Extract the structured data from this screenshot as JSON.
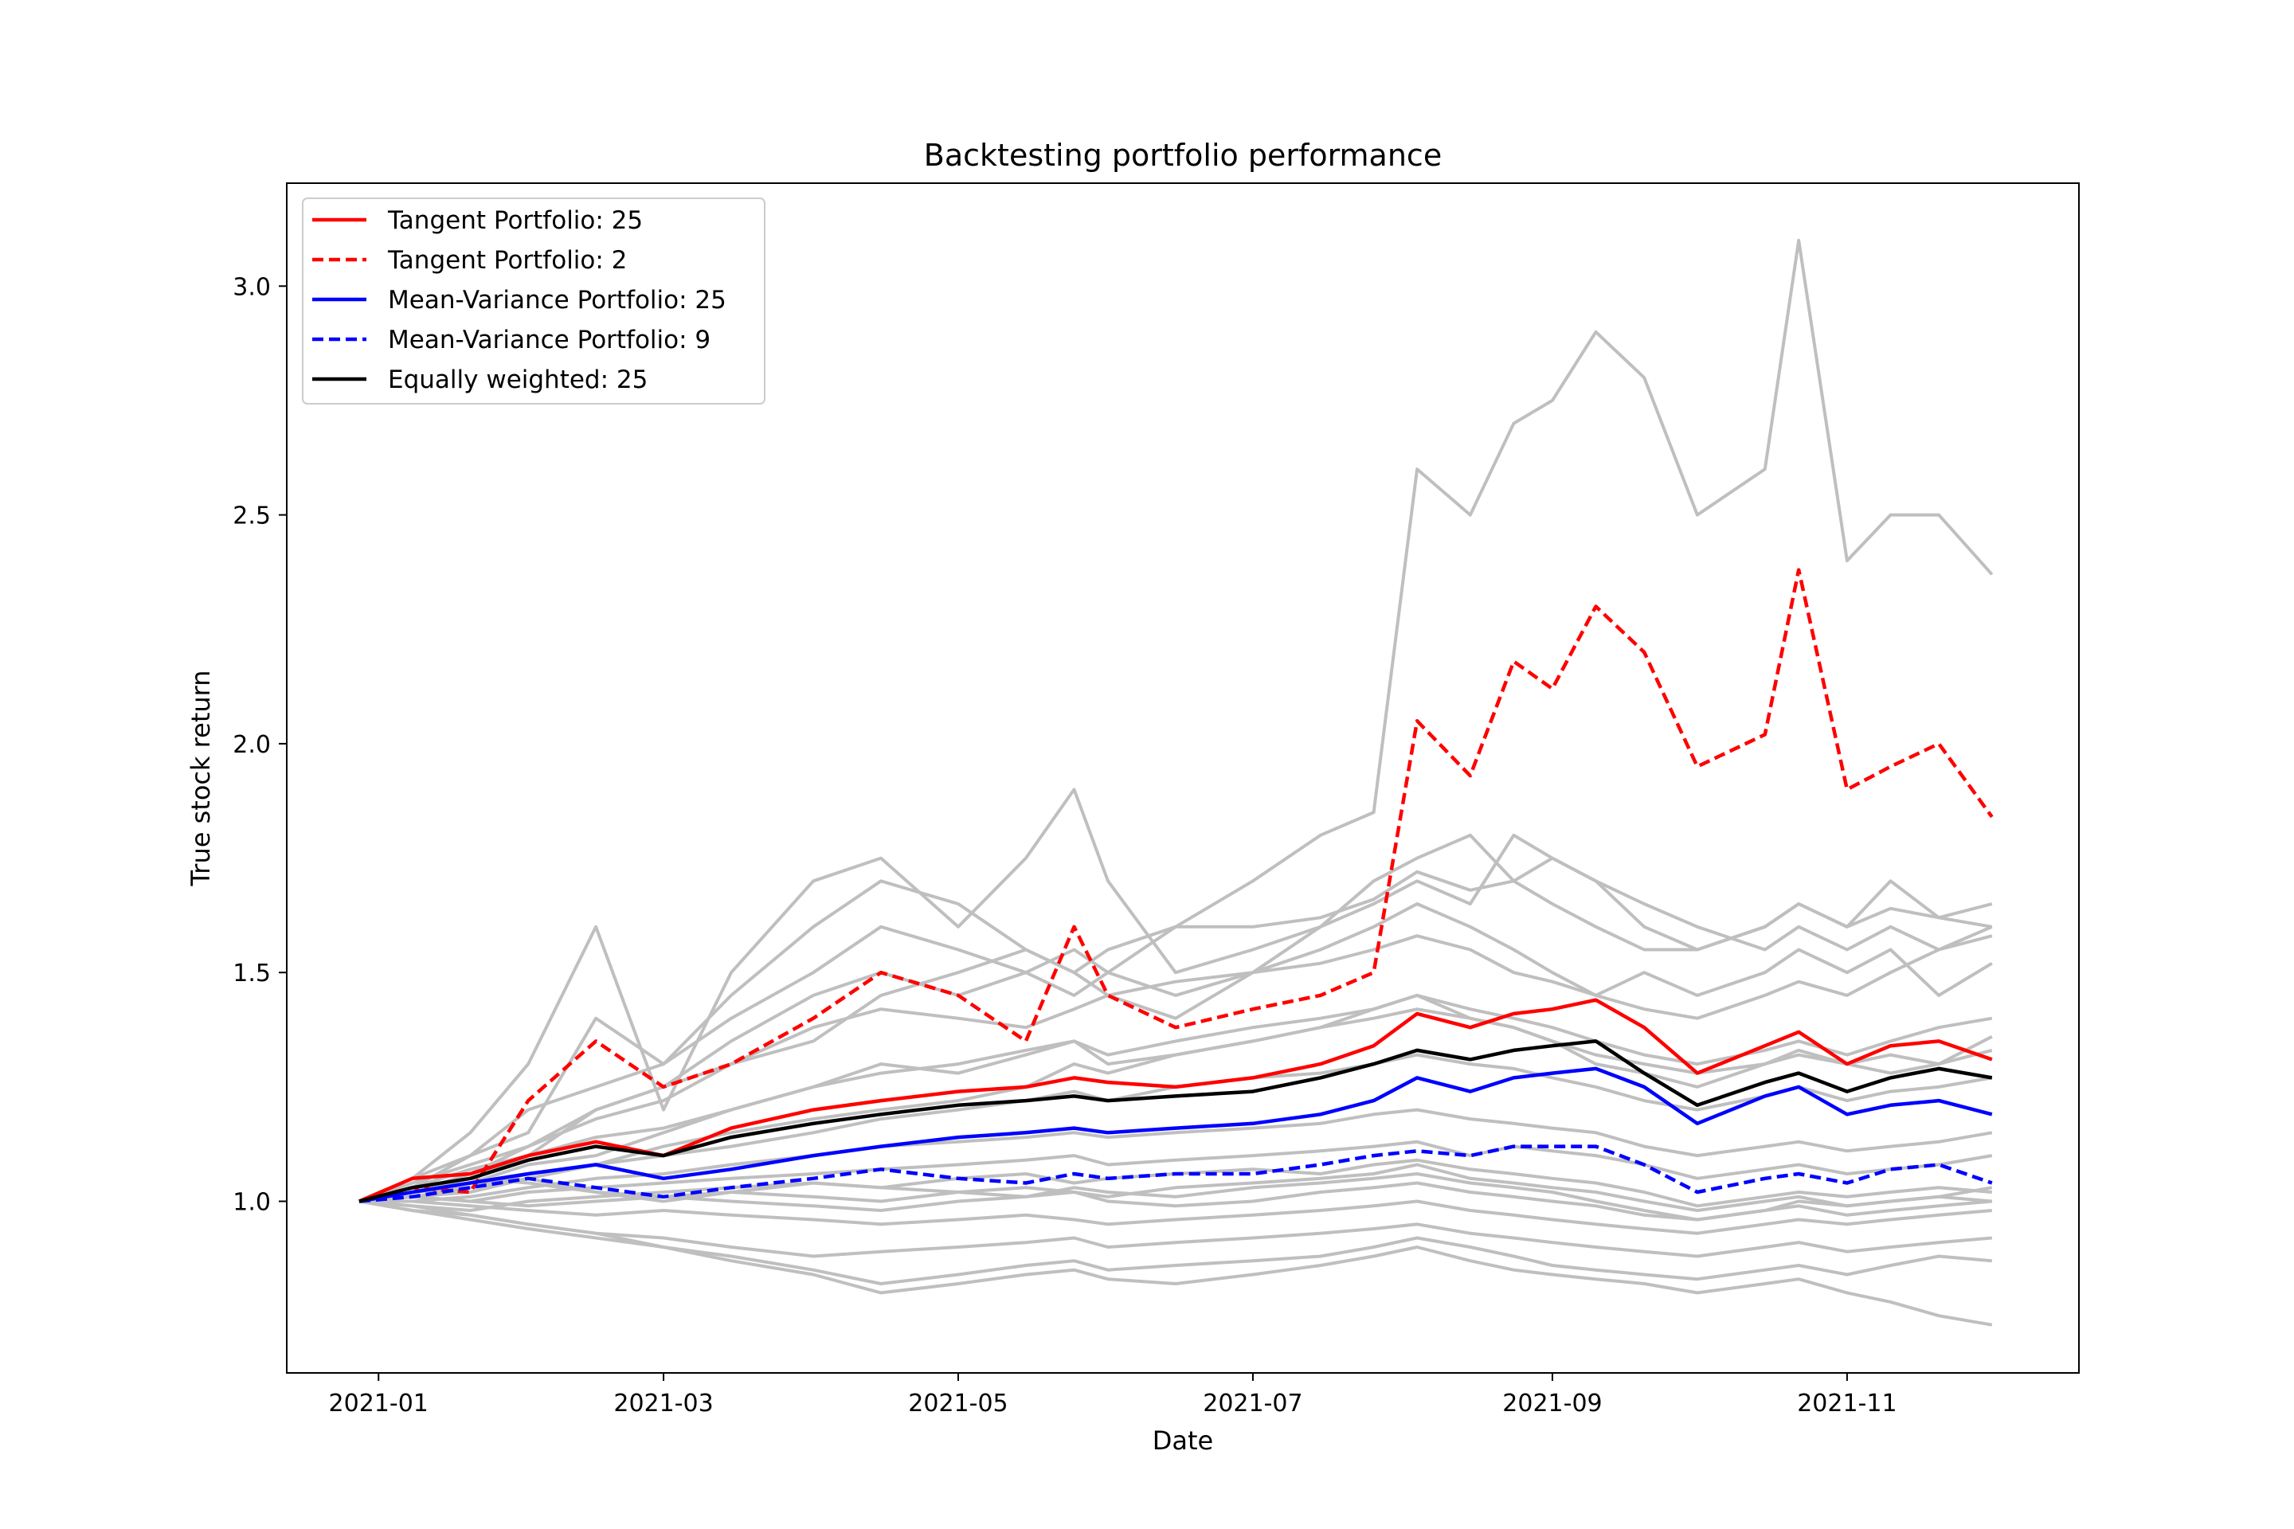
{
  "chart_data": {
    "type": "line",
    "title": "Backtesting portfolio performance",
    "xlabel": "Date",
    "ylabel": "True stock return",
    "xlim": [
      "2020-12-13",
      "2021-12-19"
    ],
    "ylim": [
      0.625,
      3.225
    ],
    "x_ticks": [
      {
        "date": "2021-01-01",
        "label": "2021-01"
      },
      {
        "date": "2021-03-01",
        "label": "2021-03"
      },
      {
        "date": "2021-05-01",
        "label": "2021-05"
      },
      {
        "date": "2021-07-01",
        "label": "2021-07"
      },
      {
        "date": "2021-09-01",
        "label": "2021-09"
      },
      {
        "date": "2021-11-01",
        "label": "2021-11"
      }
    ],
    "y_ticks": [
      {
        "value": 1.0,
        "label": "1.0"
      },
      {
        "value": 1.5,
        "label": "1.5"
      },
      {
        "value": 2.0,
        "label": "2.0"
      },
      {
        "value": 2.5,
        "label": "2.5"
      },
      {
        "value": 3.0,
        "label": "3.0"
      }
    ],
    "grid": false,
    "legend_position": "top-left",
    "x": [
      "2020-12-28",
      "2021-01-08",
      "2021-01-20",
      "2021-02-01",
      "2021-02-15",
      "2021-03-01",
      "2021-03-15",
      "2021-04-01",
      "2021-04-15",
      "2021-05-01",
      "2021-05-15",
      "2021-05-25",
      "2021-06-01",
      "2021-06-15",
      "2021-07-01",
      "2021-07-15",
      "2021-07-26",
      "2021-08-04",
      "2021-08-15",
      "2021-08-24",
      "2021-09-01",
      "2021-09-10",
      "2021-09-20",
      "2021-10-01",
      "2021-10-15",
      "2021-10-22",
      "2021-11-01",
      "2021-11-10",
      "2021-11-20",
      "2021-12-01"
    ],
    "series": [
      {
        "name": "Tangent Portfolio: 25",
        "color": "#ff0000",
        "dash": "solid",
        "values": [
          1.0,
          1.05,
          1.06,
          1.1,
          1.13,
          1.1,
          1.16,
          1.2,
          1.22,
          1.24,
          1.25,
          1.27,
          1.26,
          1.25,
          1.27,
          1.3,
          1.34,
          1.41,
          1.38,
          1.41,
          1.42,
          1.44,
          1.38,
          1.28,
          1.34,
          1.37,
          1.3,
          1.34,
          1.35,
          1.31
        ]
      },
      {
        "name": "Tangent Portfolio: 2",
        "color": "#ff0000",
        "dash": "dashed",
        "values": [
          1.0,
          1.03,
          1.02,
          1.22,
          1.35,
          1.25,
          1.3,
          1.4,
          1.5,
          1.45,
          1.35,
          1.6,
          1.45,
          1.38,
          1.42,
          1.45,
          1.5,
          2.05,
          1.93,
          2.18,
          2.12,
          2.3,
          2.2,
          1.95,
          2.02,
          2.38,
          1.9,
          1.95,
          2.0,
          1.84
        ]
      },
      {
        "name": "Mean-Variance Portfolio: 25",
        "color": "#0000ff",
        "dash": "solid",
        "values": [
          1.0,
          1.02,
          1.04,
          1.06,
          1.08,
          1.05,
          1.07,
          1.1,
          1.12,
          1.14,
          1.15,
          1.16,
          1.15,
          1.16,
          1.17,
          1.19,
          1.22,
          1.27,
          1.24,
          1.27,
          1.28,
          1.29,
          1.25,
          1.17,
          1.23,
          1.25,
          1.19,
          1.21,
          1.22,
          1.19
        ]
      },
      {
        "name": "Mean-Variance Portfolio: 9",
        "color": "#0000ff",
        "dash": "dashed",
        "values": [
          1.0,
          1.01,
          1.03,
          1.05,
          1.03,
          1.01,
          1.03,
          1.05,
          1.07,
          1.05,
          1.04,
          1.06,
          1.05,
          1.06,
          1.06,
          1.08,
          1.1,
          1.11,
          1.1,
          1.12,
          1.12,
          1.12,
          1.08,
          1.02,
          1.05,
          1.06,
          1.04,
          1.07,
          1.08,
          1.04
        ]
      },
      {
        "name": "Equally weighted: 25",
        "color": "#000000",
        "dash": "solid",
        "values": [
          1.0,
          1.03,
          1.05,
          1.09,
          1.12,
          1.1,
          1.14,
          1.17,
          1.19,
          1.21,
          1.22,
          1.23,
          1.22,
          1.23,
          1.24,
          1.27,
          1.3,
          1.33,
          1.31,
          1.33,
          1.34,
          1.35,
          1.28,
          1.21,
          1.26,
          1.28,
          1.24,
          1.27,
          1.29,
          1.27
        ]
      }
    ],
    "stock_series": [
      {
        "color": "#bfbfbf",
        "values": [
          1.0,
          1.05,
          1.1,
          1.2,
          1.25,
          1.3,
          1.4,
          1.5,
          1.6,
          1.55,
          1.5,
          1.45,
          1.5,
          1.6,
          1.7,
          1.8,
          1.85,
          2.6,
          2.5,
          2.7,
          2.75,
          2.9,
          2.8,
          2.5,
          2.6,
          3.1,
          2.4,
          2.5,
          2.5,
          2.37
        ]
      },
      {
        "color": "#bfbfbf",
        "values": [
          1.0,
          1.05,
          1.15,
          1.3,
          1.6,
          1.2,
          1.5,
          1.7,
          1.75,
          1.6,
          1.75,
          1.9,
          1.7,
          1.5,
          1.55,
          1.6,
          1.7,
          1.75,
          1.8,
          1.7,
          1.75,
          1.7,
          1.6,
          1.55,
          1.6,
          1.65,
          1.6,
          1.7,
          1.62,
          1.6
        ]
      },
      {
        "color": "#bfbfbf",
        "values": [
          1.0,
          1.03,
          1.1,
          1.15,
          1.4,
          1.3,
          1.45,
          1.6,
          1.7,
          1.65,
          1.55,
          1.5,
          1.45,
          1.4,
          1.5,
          1.6,
          1.65,
          1.7,
          1.65,
          1.8,
          1.75,
          1.7,
          1.65,
          1.6,
          1.55,
          1.6,
          1.55,
          1.6,
          1.55,
          1.58
        ]
      },
      {
        "color": "#bfbfbf",
        "values": [
          1.0,
          1.02,
          1.05,
          1.1,
          1.2,
          1.25,
          1.35,
          1.45,
          1.5,
          1.45,
          1.5,
          1.55,
          1.5,
          1.45,
          1.5,
          1.55,
          1.6,
          1.65,
          1.6,
          1.55,
          1.5,
          1.45,
          1.5,
          1.45,
          1.5,
          1.55,
          1.5,
          1.55,
          1.45,
          1.52
        ]
      },
      {
        "color": "#bfbfbf",
        "values": [
          1.0,
          1.04,
          1.08,
          1.12,
          1.18,
          1.22,
          1.3,
          1.35,
          1.45,
          1.5,
          1.55,
          1.5,
          1.55,
          1.6,
          1.6,
          1.62,
          1.66,
          1.72,
          1.68,
          1.7,
          1.65,
          1.6,
          1.55,
          1.55,
          1.6,
          1.65,
          1.6,
          1.64,
          1.62,
          1.65
        ]
      },
      {
        "color": "#bfbfbf",
        "values": [
          1.0,
          1.02,
          1.04,
          1.08,
          1.1,
          1.15,
          1.2,
          1.25,
          1.3,
          1.28,
          1.32,
          1.35,
          1.3,
          1.32,
          1.35,
          1.38,
          1.42,
          1.45,
          1.4,
          1.38,
          1.35,
          1.3,
          1.28,
          1.25,
          1.3,
          1.33,
          1.3,
          1.32,
          1.3,
          1.33
        ]
      },
      {
        "color": "#bfbfbf",
        "values": [
          1.0,
          1.01,
          1.02,
          1.05,
          1.08,
          1.1,
          1.12,
          1.15,
          1.18,
          1.2,
          1.22,
          1.24,
          1.22,
          1.25,
          1.27,
          1.28,
          1.3,
          1.32,
          1.3,
          1.29,
          1.27,
          1.25,
          1.22,
          1.2,
          1.23,
          1.25,
          1.22,
          1.24,
          1.25,
          1.27
        ]
      },
      {
        "color": "#bfbfbf",
        "values": [
          1.0,
          1.0,
          1.01,
          1.03,
          1.05,
          1.06,
          1.08,
          1.1,
          1.12,
          1.13,
          1.14,
          1.15,
          1.14,
          1.15,
          1.16,
          1.17,
          1.19,
          1.2,
          1.18,
          1.17,
          1.16,
          1.15,
          1.12,
          1.1,
          1.12,
          1.13,
          1.11,
          1.12,
          1.13,
          1.15
        ]
      },
      {
        "color": "#bfbfbf",
        "values": [
          1.0,
          1.01,
          1.0,
          1.02,
          1.03,
          1.04,
          1.05,
          1.06,
          1.07,
          1.08,
          1.09,
          1.1,
          1.08,
          1.09,
          1.1,
          1.11,
          1.12,
          1.13,
          1.1,
          1.12,
          1.11,
          1.1,
          1.08,
          1.05,
          1.07,
          1.08,
          1.06,
          1.07,
          1.08,
          1.1
        ]
      },
      {
        "color": "#bfbfbf",
        "values": [
          1.0,
          0.99,
          0.98,
          1.0,
          1.01,
          1.02,
          1.03,
          1.04,
          1.03,
          1.05,
          1.06,
          1.04,
          1.05,
          1.06,
          1.07,
          1.06,
          1.08,
          1.09,
          1.07,
          1.06,
          1.05,
          1.04,
          1.02,
          0.99,
          1.01,
          1.02,
          1.01,
          1.02,
          1.03,
          1.02
        ]
      },
      {
        "color": "#bfbfbf",
        "values": [
          1.0,
          1.0,
          0.99,
          0.98,
          0.97,
          0.98,
          0.97,
          0.96,
          0.95,
          0.96,
          0.97,
          0.96,
          0.95,
          0.96,
          0.97,
          0.98,
          0.99,
          1.0,
          0.98,
          0.97,
          0.96,
          0.95,
          0.94,
          0.93,
          0.95,
          0.96,
          0.95,
          0.96,
          0.97,
          0.98
        ]
      },
      {
        "color": "#bfbfbf",
        "values": [
          1.0,
          0.99,
          0.97,
          0.95,
          0.93,
          0.92,
          0.9,
          0.88,
          0.89,
          0.9,
          0.91,
          0.92,
          0.9,
          0.91,
          0.92,
          0.93,
          0.94,
          0.95,
          0.93,
          0.92,
          0.91,
          0.9,
          0.89,
          0.88,
          0.9,
          0.91,
          0.89,
          0.9,
          0.91,
          0.92
        ]
      },
      {
        "color": "#bfbfbf",
        "values": [
          1.0,
          0.98,
          0.96,
          0.94,
          0.92,
          0.9,
          0.88,
          0.85,
          0.82,
          0.84,
          0.86,
          0.87,
          0.85,
          0.86,
          0.87,
          0.88,
          0.9,
          0.92,
          0.9,
          0.88,
          0.86,
          0.85,
          0.84,
          0.83,
          0.85,
          0.86,
          0.84,
          0.86,
          0.88,
          0.87
        ]
      },
      {
        "color": "#bfbfbf",
        "values": [
          1.0,
          0.98,
          0.97,
          0.95,
          0.93,
          0.9,
          0.87,
          0.84,
          0.8,
          0.82,
          0.84,
          0.85,
          0.83,
          0.82,
          0.84,
          0.86,
          0.88,
          0.9,
          0.87,
          0.85,
          0.84,
          0.83,
          0.82,
          0.8,
          0.82,
          0.83,
          0.8,
          0.78,
          0.75,
          0.73
        ]
      },
      {
        "color": "#bfbfbf",
        "values": [
          1.0,
          1.02,
          1.03,
          1.06,
          1.08,
          1.12,
          1.15,
          1.18,
          1.2,
          1.22,
          1.25,
          1.3,
          1.28,
          1.32,
          1.35,
          1.38,
          1.4,
          1.42,
          1.4,
          1.38,
          1.35,
          1.32,
          1.3,
          1.28,
          1.3,
          1.32,
          1.3,
          1.28,
          1.3,
          1.36
        ]
      },
      {
        "color": "#bfbfbf",
        "values": [
          1.0,
          1.01,
          1.03,
          1.05,
          1.02,
          1.0,
          1.02,
          1.04,
          1.03,
          1.02,
          1.01,
          1.03,
          1.02,
          1.01,
          1.03,
          1.04,
          1.05,
          1.06,
          1.04,
          1.03,
          1.02,
          1.0,
          0.98,
          0.96,
          0.98,
          1.0,
          0.99,
          1.0,
          1.01,
          1.0
        ]
      },
      {
        "color": "#bfbfbf",
        "values": [
          1.0,
          1.02,
          1.06,
          1.12,
          1.2,
          1.25,
          1.3,
          1.38,
          1.42,
          1.4,
          1.38,
          1.42,
          1.45,
          1.48,
          1.5,
          1.52,
          1.55,
          1.58,
          1.55,
          1.5,
          1.48,
          1.45,
          1.42,
          1.4,
          1.45,
          1.48,
          1.45,
          1.5,
          1.55,
          1.6
        ]
      },
      {
        "color": "#bfbfbf",
        "values": [
          1.0,
          1.03,
          1.05,
          1.04,
          1.02,
          1.01,
          1.0,
          0.99,
          0.98,
          1.0,
          1.01,
          1.02,
          1.0,
          0.99,
          1.0,
          1.02,
          1.03,
          1.04,
          1.02,
          1.01,
          1.0,
          0.99,
          0.97,
          0.96,
          0.98,
          0.99,
          0.97,
          0.98,
          0.99,
          1.0
        ]
      },
      {
        "color": "#bfbfbf",
        "values": [
          1.0,
          1.01,
          1.0,
          0.99,
          1.0,
          1.01,
          1.02,
          1.01,
          1.0,
          1.02,
          1.03,
          1.02,
          1.01,
          1.03,
          1.04,
          1.05,
          1.06,
          1.08,
          1.05,
          1.04,
          1.03,
          1.02,
          1.0,
          0.98,
          1.0,
          1.01,
          0.99,
          1.0,
          1.01,
          1.03
        ]
      },
      {
        "color": "#bfbfbf",
        "values": [
          1.0,
          1.03,
          1.07,
          1.1,
          1.14,
          1.16,
          1.2,
          1.25,
          1.28,
          1.3,
          1.33,
          1.35,
          1.32,
          1.35,
          1.38,
          1.4,
          1.42,
          1.45,
          1.42,
          1.4,
          1.38,
          1.35,
          1.32,
          1.3,
          1.33,
          1.35,
          1.32,
          1.35,
          1.38,
          1.4
        ]
      }
    ]
  }
}
